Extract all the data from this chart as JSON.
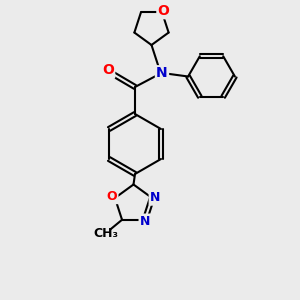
{
  "bg_color": "#ebebeb",
  "bond_color": "#000000",
  "bond_width": 1.5,
  "atom_colors": {
    "O": "#ff0000",
    "N": "#0000cc",
    "C": "#000000"
  },
  "font_size": 10
}
